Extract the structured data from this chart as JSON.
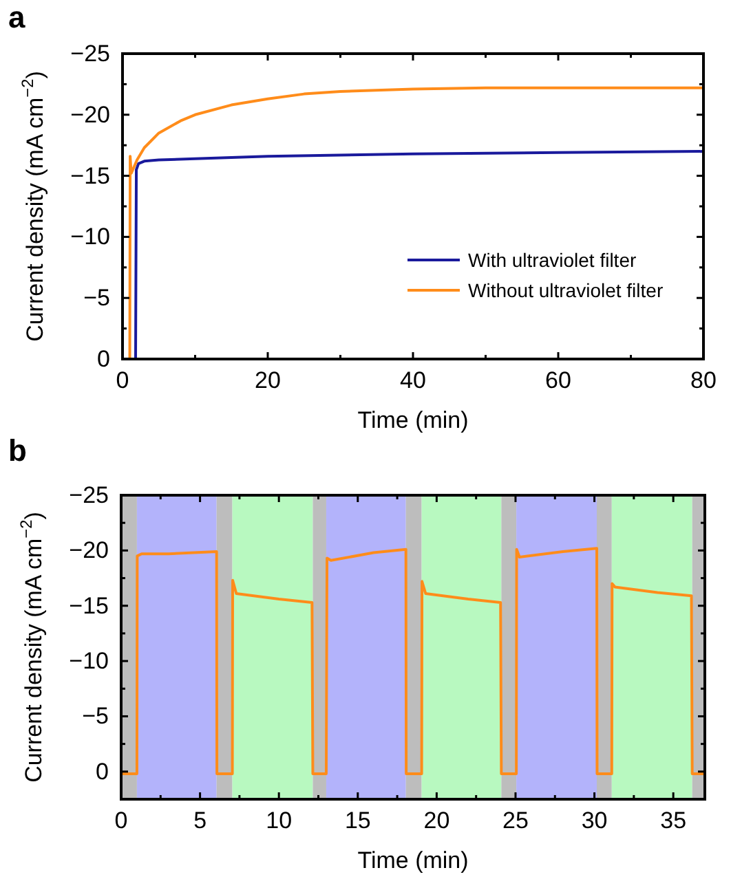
{
  "chart_data": [
    {
      "type": "line",
      "title": "a",
      "xlabel": "Time (min)",
      "ylabel": "Current density (mA cm$^{−2}$)",
      "xlim": [
        0,
        80
      ],
      "ylim": [
        0,
        -25
      ],
      "xticks": [
        0,
        {
          "value": 10,
          "label": null
        },
        20,
        {
          "value": 30,
          "label": null
        },
        40,
        {
          "value": 50,
          "label": null
        },
        60,
        {
          "value": 70,
          "label": null
        },
        80
      ],
      "yticks": [
        {
          "value": 0,
          "label": "0"
        },
        {
          "value": -2.5,
          "label": null
        },
        {
          "value": -5,
          "label": "−5"
        },
        {
          "value": -7.5,
          "label": null
        },
        {
          "value": -10,
          "label": "−10"
        },
        {
          "value": -12.5,
          "label": null
        },
        {
          "value": -15,
          "label": "−15"
        },
        {
          "value": -17.5,
          "label": null
        },
        {
          "value": -20,
          "label": "−20"
        },
        {
          "value": -22.5,
          "label": null
        },
        {
          "value": -25,
          "label": "−25"
        }
      ],
      "legend": "bottom right",
      "grid": false,
      "line_style": "solid",
      "series": [
        {
          "name": "With ultraviolet filter",
          "color": "#1a1a9c",
          "x": [
            1.8,
            1.9,
            2.2,
            3,
            5,
            10,
            20,
            30,
            40,
            60,
            80
          ],
          "values": [
            0,
            -15.5,
            -16,
            -16.2,
            -16.3,
            -16.4,
            -16.6,
            -16.7,
            -16.8,
            -16.9,
            -17
          ]
        },
        {
          "name": "Without ultraviolet filter",
          "color": "#ff8c1a",
          "x": [
            1,
            1.05,
            1.2,
            2,
            3,
            5,
            8,
            10,
            15,
            20,
            25,
            30,
            40,
            50,
            60,
            70,
            80
          ],
          "values": [
            0,
            -16.6,
            -15.2,
            -16.3,
            -17.3,
            -18.5,
            -19.5,
            -20,
            -20.8,
            -21.3,
            -21.7,
            -21.9,
            -22.1,
            -22.2,
            -22.2,
            -22.2,
            -22.2
          ]
        }
      ]
    },
    {
      "type": "line",
      "title": "b",
      "xlabel": "Time (min)",
      "ylabel": "Current density (mA cm$^{−2}$)",
      "xlim": [
        0,
        37
      ],
      "ylim": [
        2.5,
        -25
      ],
      "xticks": [
        0,
        {
          "value": 2.5,
          "label": null
        },
        5,
        {
          "value": 7.5,
          "label": null
        },
        10,
        {
          "value": 12.5,
          "label": null
        },
        15,
        {
          "value": 17.5,
          "label": null
        },
        20,
        {
          "value": 22.5,
          "label": null
        },
        25,
        {
          "value": 27.5,
          "label": null
        },
        30,
        {
          "value": 32.5,
          "label": null
        },
        35
      ],
      "yticks": [
        {
          "value": 2.5,
          "label": null
        },
        {
          "value": 0,
          "label": "0"
        },
        {
          "value": -2.5,
          "label": null
        },
        {
          "value": -5,
          "label": "−5"
        },
        {
          "value": -7.5,
          "label": null
        },
        {
          "value": -10,
          "label": "−10"
        },
        {
          "value": -12.5,
          "label": null
        },
        {
          "value": -15,
          "label": "−15"
        },
        {
          "value": -17.5,
          "label": null
        },
        {
          "value": -20,
          "label": "−20"
        },
        {
          "value": -22.5,
          "label": null
        },
        {
          "value": -25,
          "label": "−25"
        }
      ],
      "grid": false,
      "line_style": "solid",
      "bands": [
        {
          "axis": "x",
          "from": 0,
          "to": 1,
          "color": "#bdbdbd"
        },
        {
          "axis": "x",
          "from": 1,
          "to": 6.05,
          "color": "#b3b3fb"
        },
        {
          "axis": "x",
          "from": 6.05,
          "to": 7.05,
          "color": "#bdbdbd"
        },
        {
          "axis": "x",
          "from": 7.05,
          "to": 12.15,
          "color": "#b8f9c0"
        },
        {
          "axis": "x",
          "from": 12.15,
          "to": 13,
          "color": "#bdbdbd"
        },
        {
          "axis": "x",
          "from": 13,
          "to": 18.05,
          "color": "#b3b3fb"
        },
        {
          "axis": "x",
          "from": 18.05,
          "to": 19.05,
          "color": "#bdbdbd"
        },
        {
          "axis": "x",
          "from": 19.05,
          "to": 24.1,
          "color": "#b8f9c0"
        },
        {
          "axis": "x",
          "from": 24.1,
          "to": 25.05,
          "color": "#bdbdbd"
        },
        {
          "axis": "x",
          "from": 25.05,
          "to": 30.15,
          "color": "#b3b3fb"
        },
        {
          "axis": "x",
          "from": 30.15,
          "to": 31.1,
          "color": "#bdbdbd"
        },
        {
          "axis": "x",
          "from": 31.1,
          "to": 36.2,
          "color": "#b8f9c0"
        },
        {
          "axis": "x",
          "from": 36.2,
          "to": 37,
          "color": "#bdbdbd"
        }
      ],
      "series": [
        {
          "color": "#ff8c1a",
          "x": [
            0,
            1,
            1.02,
            1.3,
            3,
            6.05,
            6.07,
            7.05,
            7.07,
            7.3,
            10,
            12.1,
            12.15,
            13,
            13.05,
            13.3,
            16,
            18.05,
            18.07,
            19.05,
            19.07,
            19.3,
            22,
            24.05,
            24.1,
            25.05,
            25.07,
            25.25,
            28,
            30.15,
            30.17,
            31.1,
            31.12,
            31.3,
            34,
            36.15,
            36.2,
            37
          ],
          "values": [
            0.2,
            0.2,
            -19.5,
            -19.7,
            -19.7,
            -19.9,
            0.2,
            0.2,
            -17.3,
            -16.1,
            -15.6,
            -15.3,
            0.2,
            0.2,
            -19.3,
            -19.1,
            -19.8,
            -20.1,
            0.2,
            0.2,
            -17.2,
            -16.1,
            -15.6,
            -15.3,
            0.2,
            0.2,
            -20.1,
            -19.4,
            -19.9,
            -20.2,
            0.2,
            0.2,
            -17,
            -16.7,
            -16.2,
            -15.9,
            0.2,
            0.2
          ]
        }
      ]
    }
  ]
}
